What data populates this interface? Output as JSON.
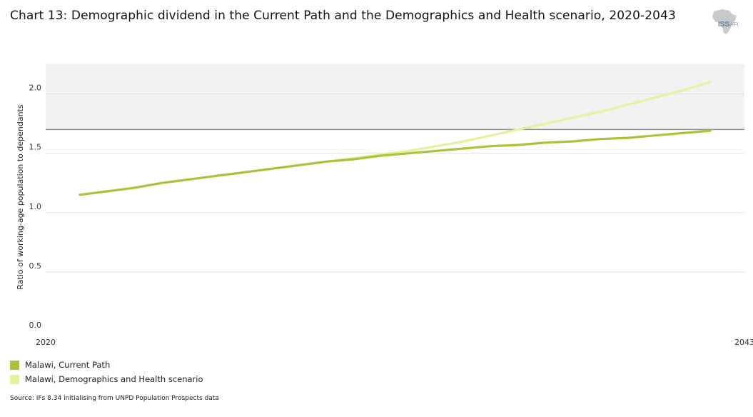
{
  "title": "Chart 13: Demographic dividend in the Current Path and the Demographics and Health scenario, 2020-2043",
  "logo": {
    "text": "ISS",
    "subtext": "AFI"
  },
  "source": "Source: IFs 8.34 initialising from UNPD Population Prospects data",
  "colors": {
    "current_path": "#a8c43c",
    "scenario": "#e4f29c",
    "band": "#f2f2f2",
    "threshold": "#8c8c8c",
    "grid": "#e3e3e3"
  },
  "legend": [
    {
      "label": "Malawi, Current Path",
      "color": "#a8c43c"
    },
    {
      "label": "Malawi, Demographics and Health scenario",
      "color": "#e4f29c"
    }
  ],
  "chart_data": {
    "type": "line",
    "title": "Chart 13: Demographic dividend in the Current Path and the Demographics and Health scenario, 2020-2043",
    "xlabel": "",
    "ylabel": "Ratio of working-age population to dependants",
    "x_tick_labels": [
      "2020",
      "2043"
    ],
    "y_ticks": [
      "0.0",
      "0.5",
      "1.0",
      "1.5",
      "2.0"
    ],
    "y_tick_values": [
      0,
      0.5,
      1.0,
      1.5,
      2.0
    ],
    "xlim": [
      2020,
      2043
    ],
    "ylim": [
      0,
      2.25
    ],
    "threshold": 1.7,
    "shaded_band": [
      1.7,
      2.25
    ],
    "x": [
      2020,
      2021,
      2022,
      2023,
      2024,
      2025,
      2026,
      2027,
      2028,
      2029,
      2030,
      2031,
      2032,
      2033,
      2034,
      2035,
      2036,
      2037,
      2038,
      2039,
      2040,
      2041,
      2042,
      2043
    ],
    "series": [
      {
        "name": "Malawi, Current Path",
        "color": "#a8c43c",
        "values": [
          1.15,
          1.18,
          1.21,
          1.25,
          1.28,
          1.31,
          1.34,
          1.37,
          1.4,
          1.43,
          1.45,
          1.48,
          1.5,
          1.52,
          1.54,
          1.56,
          1.57,
          1.59,
          1.6,
          1.62,
          1.63,
          1.65,
          1.67,
          1.69
        ]
      },
      {
        "name": "Malawi, Demographics and Health scenario",
        "color": "#e4f29c",
        "values": [
          1.15,
          1.18,
          1.21,
          1.25,
          1.28,
          1.31,
          1.34,
          1.37,
          1.4,
          1.43,
          1.46,
          1.49,
          1.52,
          1.56,
          1.6,
          1.65,
          1.7,
          1.75,
          1.8,
          1.85,
          1.91,
          1.97,
          2.03,
          2.1
        ]
      }
    ]
  }
}
